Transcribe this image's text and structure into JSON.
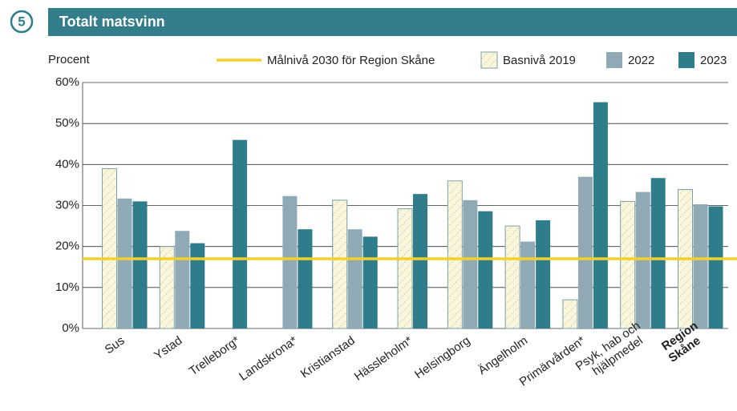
{
  "chart_data": {
    "type": "bar",
    "section": "5",
    "title": "Totalt matsvinn",
    "y_label": "Procent",
    "categories": [
      "Sus",
      "Ystad",
      "Trelleborg*",
      "Landskrona*",
      "Kristianstad",
      "Hässleholm*",
      "Helsingborg",
      "Ängelholm",
      "Primärvården*",
      [
        "Psyk, hab och",
        "hjälpmedel"
      ],
      [
        "Region",
        "Skåne"
      ]
    ],
    "series": [
      {
        "name": "Basnivå 2019",
        "color": "#fbf5d9",
        "hatch": true,
        "values": [
          39,
          20,
          null,
          null,
          31.3,
          29.2,
          36,
          25,
          7,
          31,
          33.9
        ]
      },
      {
        "name": "2022",
        "color": "#8fa9b5",
        "values": [
          31.7,
          23.8,
          null,
          32.3,
          24.2,
          null,
          31.3,
          21.2,
          37,
          33.3,
          30.3
        ]
      },
      {
        "name": "2023",
        "color": "#2f7c8a",
        "values": [
          31,
          20.8,
          46,
          24.2,
          22.4,
          32.8,
          28.6,
          26.4,
          55.2,
          36.7,
          29.8
        ]
      }
    ],
    "target": {
      "name": "Målnivå 2030 för Region Skåne",
      "value": 17,
      "color": "#f4d12a"
    },
    "ylim": [
      0,
      60
    ],
    "yticks": [
      {
        "value": 0,
        "label": "0%"
      },
      {
        "value": 10,
        "label": "10%"
      },
      {
        "value": 20,
        "label": "20%"
      },
      {
        "value": 30,
        "label": "30%"
      },
      {
        "value": 40,
        "label": "40%"
      },
      {
        "value": 50,
        "label": "50%"
      },
      {
        "value": 60,
        "label": "60%"
      }
    ],
    "grid": true
  }
}
